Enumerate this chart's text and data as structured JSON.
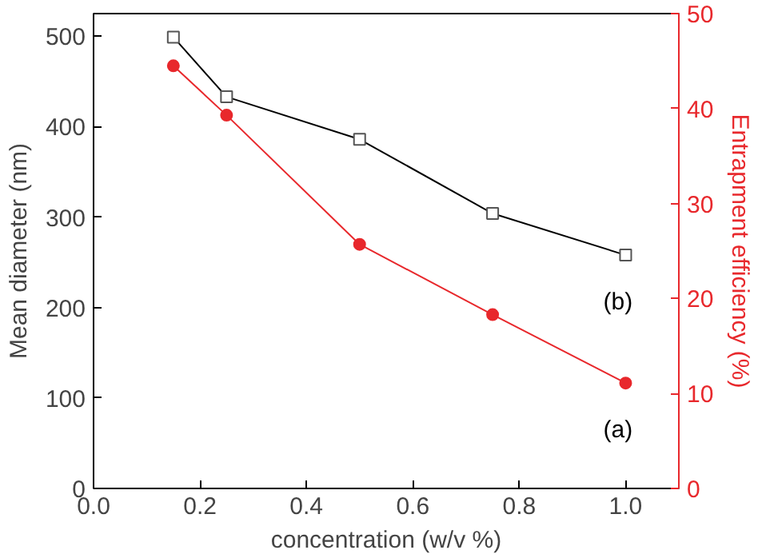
{
  "chart_data": {
    "type": "line",
    "xlabel": "concentration (w/v %)",
    "ylabel": "Mean diameter (nm)",
    "y2label": "Entrapment efficiency (%)",
    "x": [
      0.15,
      0.25,
      0.5,
      0.75,
      1.0
    ],
    "series": [
      {
        "name": "(b)",
        "color": "#000000",
        "values": [
          499,
          433,
          386,
          304,
          258
        ],
        "marker": "square"
      },
      {
        "name": "(a)",
        "color": "#e8282c",
        "values": [
          44.5,
          39.3,
          25.7,
          18.3,
          11.1
        ],
        "marker": "circle",
        "axis": "y2"
      }
    ],
    "xlim": [
      0,
      1.1
    ],
    "xticks": [
      {
        "value": 0,
        "label": "0.0"
      },
      0.2,
      0.4,
      0.6,
      0.8,
      {
        "value": 1,
        "label": "1.0"
      }
    ],
    "ylim": [
      0,
      525
    ],
    "yticks": [
      0,
      100,
      200,
      300,
      400,
      500
    ],
    "y2lim": [
      0,
      50
    ],
    "y2ticks": [
      0,
      10,
      20,
      30,
      40,
      50
    ],
    "grid": false
  }
}
